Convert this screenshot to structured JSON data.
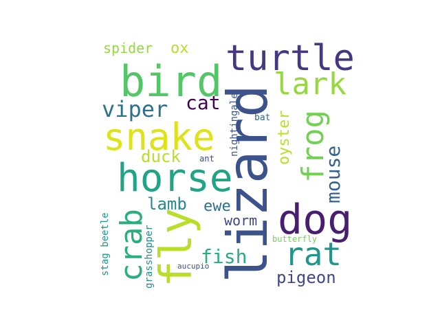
{
  "words": [
    {
      "id": "lizard",
      "text": "lizard",
      "color": "#3b528b"
    },
    {
      "id": "bird",
      "text": "bird",
      "color": "#55c667"
    },
    {
      "id": "turtle",
      "text": "turtle",
      "color": "#453781"
    },
    {
      "id": "snake",
      "text": "snake",
      "color": "#dde318"
    },
    {
      "id": "horse",
      "text": "horse",
      "color": "#20a386"
    },
    {
      "id": "dog",
      "text": "dog",
      "color": "#481f70"
    },
    {
      "id": "fly",
      "text": "fly",
      "color": "#b8de29"
    },
    {
      "id": "lark",
      "text": "lark",
      "color": "#95d840"
    },
    {
      "id": "crab",
      "text": "crab",
      "color": "#29af7f"
    },
    {
      "id": "frog",
      "text": "frog",
      "color": "#73d055"
    },
    {
      "id": "rat",
      "text": "rat",
      "color": "#1f968b"
    },
    {
      "id": "viper",
      "text": "viper",
      "color": "#2d708e"
    },
    {
      "id": "mouse",
      "text": "mouse",
      "color": "#33638d"
    },
    {
      "id": "cat",
      "text": "cat",
      "color": "#440154"
    },
    {
      "id": "pigeon",
      "text": "pigeon",
      "color": "#3f4788"
    },
    {
      "id": "fish",
      "text": "fish",
      "color": "#29af7f"
    },
    {
      "id": "oyster",
      "text": "oyster",
      "color": "#b8de29"
    },
    {
      "id": "lamb",
      "text": "lamb",
      "color": "#238a8d"
    },
    {
      "id": "duck",
      "text": "duck",
      "color": "#b8de29"
    },
    {
      "id": "ewe",
      "text": "ewe",
      "color": "#2d708e"
    },
    {
      "id": "worm",
      "text": "worm",
      "color": "#404688"
    },
    {
      "id": "spider",
      "text": "spider",
      "color": "#95d840"
    },
    {
      "id": "ox",
      "text": "ox",
      "color": "#b8de29"
    },
    {
      "id": "nightingale",
      "text": "nightingale",
      "color": "#39568c"
    },
    {
      "id": "stag-beetle",
      "text": "stag beetle",
      "color": "#1f968b"
    },
    {
      "id": "grasshopper",
      "text": "grasshopper",
      "color": "#238a8d"
    },
    {
      "id": "butterfly",
      "text": "butterfly",
      "color": "#73d055"
    },
    {
      "id": "bat",
      "text": "bat",
      "color": "#33638d"
    },
    {
      "id": "ant",
      "text": "ant",
      "color": "#3f4788"
    },
    {
      "id": "aucupio",
      "text": "aucupio",
      "color": "#3b528b"
    }
  ]
}
